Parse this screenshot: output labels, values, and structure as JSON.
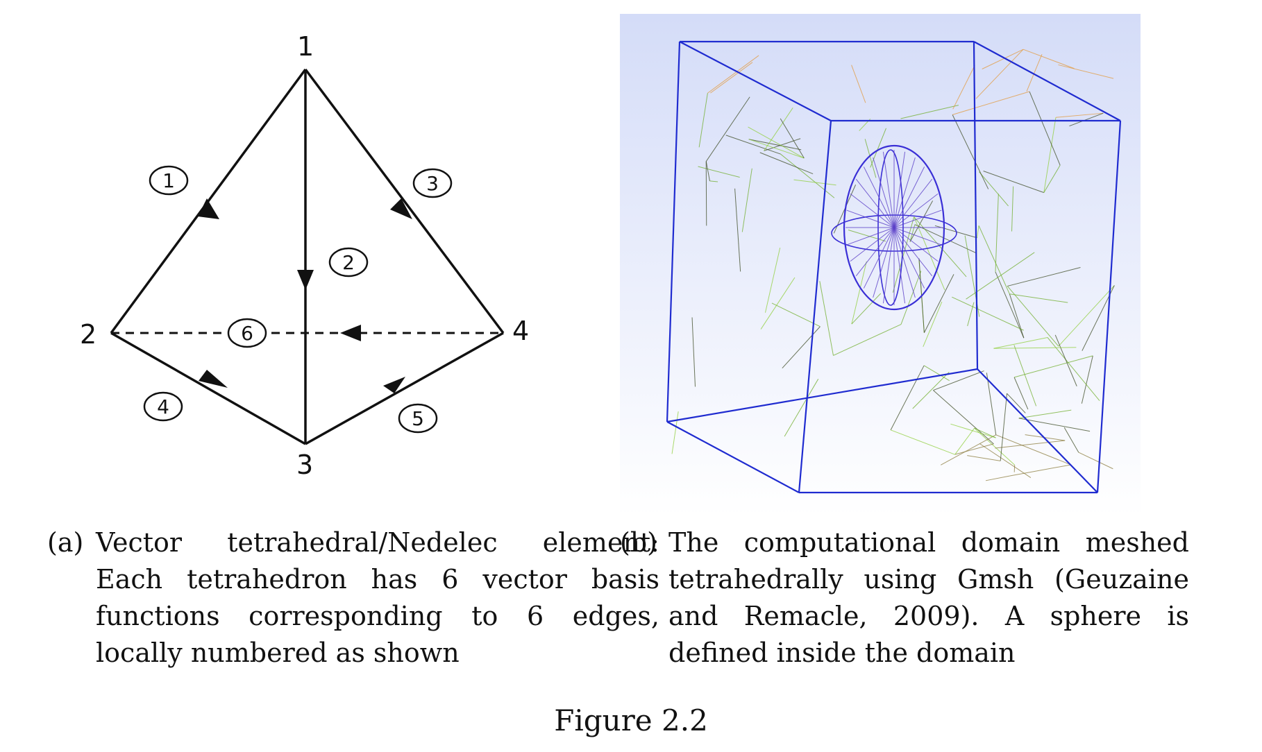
{
  "figure_title": "Figure 2.2",
  "panel_a": {
    "label": "(a)",
    "caption": "Vector tetrahedral/Nedelec element: Each tetrahedron has 6 vector basis functions corresponding to 6 edges, locally numbered as shown",
    "node_labels": [
      "1",
      "2",
      "3",
      "4"
    ],
    "edge_labels": [
      "1",
      "2",
      "3",
      "4",
      "5",
      "6"
    ]
  },
  "panel_b": {
    "label": "(b)",
    "caption": "The computational domain meshed tetrahedrally using Gmsh (Geuzaine and Remacle, 2009). A sphere is defined inside the domain"
  },
  "colors": {
    "mesh_background_top": "#d4dcf8",
    "mesh_background_bottom": "#ffffff",
    "box_edges": "#1f2bd0",
    "mesh_green": "#6fae2a",
    "mesh_dark": "#3c4a23",
    "mesh_orange": "#e39a3c",
    "sphere": "#3a2fd6"
  }
}
